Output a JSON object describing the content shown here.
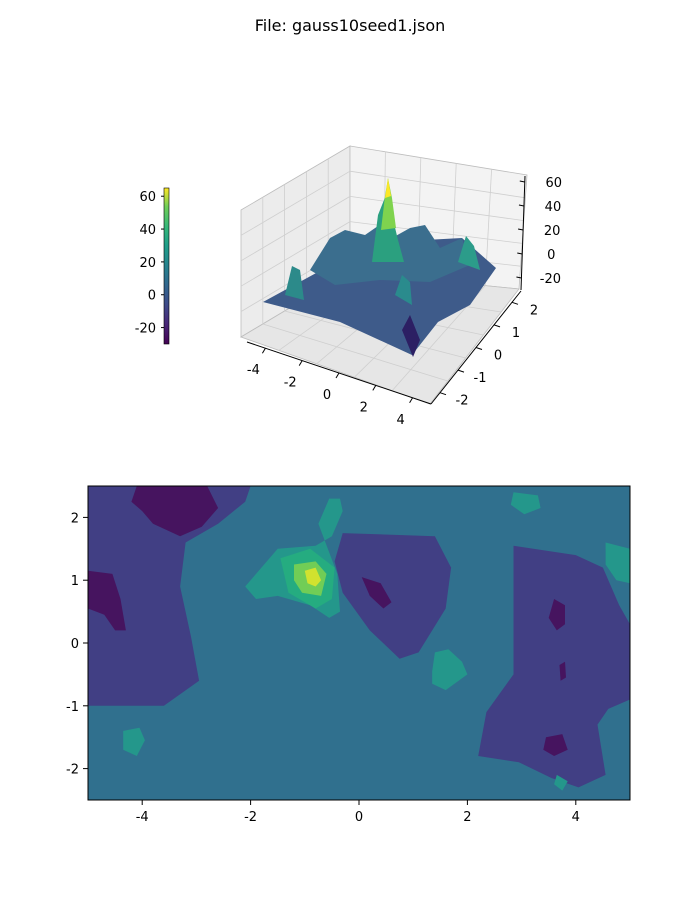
{
  "figure": {
    "title": "File: gauss10seed1.json"
  },
  "chart_data": [
    {
      "type": "surface",
      "x_ticks": [
        -4,
        -2,
        0,
        2,
        4
      ],
      "y_ticks": [
        -2,
        -1,
        0,
        1,
        2
      ],
      "z_ticks": [
        -20,
        0,
        20,
        40,
        60
      ],
      "xlim": [
        -5,
        5
      ],
      "ylim": [
        -2.5,
        2.5
      ],
      "zlim": [
        -30,
        65
      ],
      "colorbar": {
        "ticks": [
          -20,
          0,
          20,
          40,
          60
        ],
        "range": [
          -30,
          65
        ],
        "colormap": "viridis"
      },
      "grid": true
    },
    {
      "type": "filled_contour",
      "x_ticks": [
        -4,
        -2,
        0,
        2,
        4
      ],
      "y_ticks": [
        -2,
        -1,
        0,
        1,
        2
      ],
      "xlim": [
        -5,
        5
      ],
      "ylim": [
        -2.5,
        2.5
      ],
      "colormap": "viridis",
      "levels": [
        {
          "name": "deep-purple",
          "color": "#46145f",
          "value": -20
        },
        {
          "name": "indigo",
          "color": "#413f84",
          "value": -5
        },
        {
          "name": "teal-blue",
          "color": "#30708e",
          "value": 5
        },
        {
          "name": "teal-green",
          "color": "#24978b",
          "value": 20
        },
        {
          "name": "sea-green",
          "color": "#25ac80",
          "value": 30
        },
        {
          "name": "green",
          "color": "#71cd56",
          "value": 45
        },
        {
          "name": "yellow",
          "color": "#d1e22f",
          "value": 60
        }
      ],
      "regions": [
        {
          "level": 1,
          "pts": [
            [
              -5,
              2.5
            ],
            [
              -2,
              2.5
            ],
            [
              -2.1,
              2.25
            ],
            [
              -2.6,
              1.9
            ],
            [
              -3.2,
              1.6
            ],
            [
              -3.3,
              0.9
            ],
            [
              -3.1,
              0.1
            ],
            [
              -2.95,
              -0.6
            ],
            [
              -3.6,
              -1.0
            ],
            [
              -5,
              -1.0
            ]
          ]
        },
        {
          "level": 0,
          "pts": [
            [
              -4.1,
              2.5
            ],
            [
              -2.8,
              2.5
            ],
            [
              -2.6,
              2.15
            ],
            [
              -2.9,
              1.85
            ],
            [
              -3.3,
              1.7
            ],
            [
              -3.8,
              1.9
            ],
            [
              -4.0,
              2.1
            ],
            [
              -4.2,
              2.25
            ]
          ]
        },
        {
          "level": 0,
          "pts": [
            [
              -5,
              1.15
            ],
            [
              -4.55,
              1.1
            ],
            [
              -4.4,
              0.7
            ],
            [
              -4.3,
              0.2
            ],
            [
              -4.5,
              0.2
            ],
            [
              -4.7,
              0.45
            ],
            [
              -5,
              0.55
            ]
          ]
        },
        {
          "level": 1,
          "pts": [
            [
              -0.3,
              1.75
            ],
            [
              1.4,
              1.7
            ],
            [
              1.7,
              1.2
            ],
            [
              1.6,
              0.55
            ],
            [
              1.1,
              -0.15
            ],
            [
              0.75,
              -0.25
            ],
            [
              0.2,
              0.2
            ],
            [
              -0.3,
              0.8
            ],
            [
              -0.45,
              1.3
            ]
          ]
        },
        {
          "level": 0,
          "pts": [
            [
              0.05,
              1.05
            ],
            [
              0.4,
              0.95
            ],
            [
              0.6,
              0.65
            ],
            [
              0.45,
              0.55
            ],
            [
              0.2,
              0.75
            ]
          ]
        },
        {
          "level": 1,
          "pts": [
            [
              2.85,
              1.55
            ],
            [
              4.0,
              1.4
            ],
            [
              4.5,
              1.2
            ],
            [
              4.8,
              0.6
            ],
            [
              5,
              0.3
            ],
            [
              5,
              -0.9
            ],
            [
              4.6,
              -1.05
            ],
            [
              4.4,
              -1.3
            ],
            [
              4.55,
              -2.1
            ],
            [
              4.05,
              -2.3
            ],
            [
              3.55,
              -2.15
            ],
            [
              2.95,
              -1.9
            ],
            [
              2.2,
              -1.8
            ],
            [
              2.35,
              -1.1
            ],
            [
              2.85,
              -0.5
            ],
            [
              2.85,
              0.4
            ]
          ]
        },
        {
          "level": 0,
          "pts": [
            [
              3.6,
              0.7
            ],
            [
              3.8,
              0.6
            ],
            [
              3.8,
              0.3
            ],
            [
              3.65,
              0.2
            ],
            [
              3.5,
              0.4
            ]
          ]
        },
        {
          "level": 0,
          "pts": [
            [
              3.7,
              -0.35
            ],
            [
              3.8,
              -0.3
            ],
            [
              3.82,
              -0.55
            ],
            [
              3.72,
              -0.6
            ]
          ]
        },
        {
          "level": 0,
          "pts": [
            [
              3.45,
              -1.5
            ],
            [
              3.75,
              -1.45
            ],
            [
              3.85,
              -1.7
            ],
            [
              3.6,
              -1.8
            ],
            [
              3.4,
              -1.7
            ]
          ]
        },
        {
          "level": 3,
          "pts": [
            [
              -2.1,
              0.9
            ],
            [
              -1.5,
              1.5
            ],
            [
              -0.8,
              1.55
            ],
            [
              -0.5,
              1.7
            ],
            [
              -0.3,
              2.1
            ],
            [
              -0.35,
              2.3
            ],
            [
              -0.55,
              2.3
            ],
            [
              -0.75,
              1.9
            ],
            [
              -0.4,
              1.1
            ],
            [
              -0.35,
              0.5
            ],
            [
              -0.55,
              0.4
            ],
            [
              -0.9,
              0.6
            ],
            [
              -1.5,
              0.75
            ],
            [
              -1.9,
              0.7
            ]
          ]
        },
        {
          "level": 3,
          "pts": [
            [
              1.4,
              -0.15
            ],
            [
              1.65,
              -0.1
            ],
            [
              1.9,
              -0.3
            ],
            [
              2.0,
              -0.5
            ],
            [
              1.6,
              -0.75
            ],
            [
              1.35,
              -0.65
            ],
            [
              1.35,
              -0.45
            ]
          ]
        },
        {
          "level": 3,
          "pts": [
            [
              -4.35,
              -1.4
            ],
            [
              -4.05,
              -1.35
            ],
            [
              -3.95,
              -1.55
            ],
            [
              -4.1,
              -1.8
            ],
            [
              -4.35,
              -1.7
            ]
          ]
        },
        {
          "level": 3,
          "pts": [
            [
              2.85,
              2.4
            ],
            [
              3.3,
              2.35
            ],
            [
              3.35,
              2.15
            ],
            [
              3.05,
              2.05
            ],
            [
              2.8,
              2.2
            ]
          ]
        },
        {
          "level": 3,
          "pts": [
            [
              4.55,
              1.6
            ],
            [
              5,
              1.5
            ],
            [
              5,
              0.95
            ],
            [
              4.75,
              1.0
            ],
            [
              4.55,
              1.25
            ]
          ]
        },
        {
          "level": 3,
          "pts": [
            [
              3.65,
              -2.1
            ],
            [
              3.85,
              -2.2
            ],
            [
              3.75,
              -2.35
            ],
            [
              3.6,
              -2.25
            ]
          ]
        },
        {
          "level": 4,
          "pts": [
            [
              -1.45,
              1.35
            ],
            [
              -0.9,
              1.5
            ],
            [
              -0.45,
              1.2
            ],
            [
              -0.5,
              0.7
            ],
            [
              -0.8,
              0.55
            ],
            [
              -1.3,
              0.8
            ]
          ]
        },
        {
          "level": 5,
          "pts": [
            [
              -1.2,
              1.25
            ],
            [
              -0.8,
              1.3
            ],
            [
              -0.6,
              1.1
            ],
            [
              -0.7,
              0.75
            ],
            [
              -1.05,
              0.8
            ],
            [
              -1.2,
              1.0
            ]
          ]
        },
        {
          "level": 6,
          "pts": [
            [
              -1.0,
              1.15
            ],
            [
              -0.8,
              1.2
            ],
            [
              -0.7,
              1.0
            ],
            [
              -0.8,
              0.9
            ],
            [
              -0.95,
              0.95
            ]
          ]
        }
      ]
    }
  ]
}
